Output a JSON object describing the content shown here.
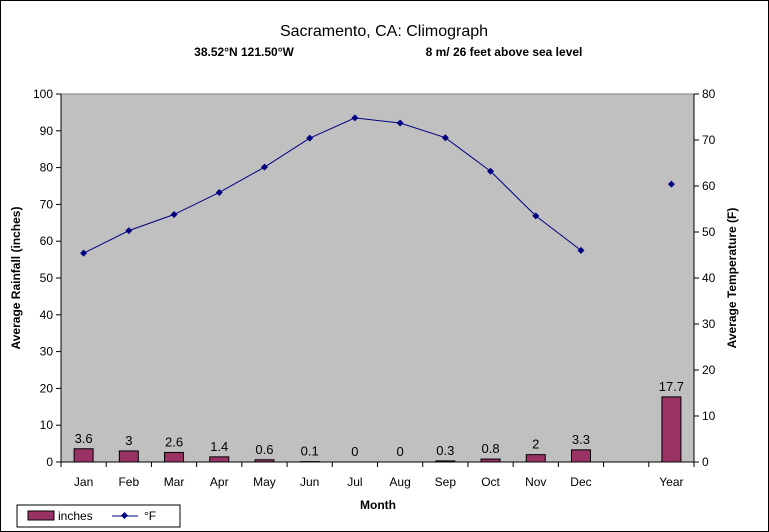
{
  "chart_data": {
    "type": "bar+line",
    "title": "Sacramento, CA: Climograph",
    "subtitle_left": "38.52°N 121.50°W",
    "subtitle_right": "8 m/ 26 feet above sea level",
    "xlabel": "Month",
    "ylabel_left": "Average Rainfall (inches)",
    "ylabel_right": "Average Temperature (F)",
    "categories": [
      "Jan",
      "Feb",
      "Mar",
      "Apr",
      "May",
      "Jun",
      "Jul",
      "Aug",
      "Sep",
      "Oct",
      "Nov",
      "Dec",
      "",
      "Year"
    ],
    "ylim_left": [
      0,
      100
    ],
    "yticks_left": [
      0,
      10,
      20,
      30,
      40,
      50,
      60,
      70,
      80,
      90,
      100
    ],
    "ylim_right": [
      0,
      80
    ],
    "yticks_right": [
      0,
      10,
      20,
      30,
      40,
      50,
      60,
      70,
      80
    ],
    "grid": false,
    "legend_position": "bottom-left",
    "series": [
      {
        "name": "inches",
        "kind": "bar",
        "axis": "left",
        "color": "#993366",
        "values": [
          3.6,
          3,
          2.6,
          1.4,
          0.6,
          0.1,
          0,
          0,
          0.3,
          0.8,
          2,
          3.3,
          null,
          17.7
        ],
        "labels": [
          "3.6",
          "3",
          "2.6",
          "1.4",
          "0.6",
          "0.1",
          "0",
          "0",
          "0.3",
          "0.8",
          "2",
          "3.3",
          "",
          "17.7"
        ]
      },
      {
        "name": "°F",
        "kind": "line",
        "axis": "right",
        "color": "#000080",
        "values": [
          45.4,
          50.3,
          53.8,
          58.6,
          64.1,
          70.4,
          74.8,
          73.7,
          70.5,
          63.2,
          53.5,
          46.0,
          null,
          60.4
        ]
      }
    ],
    "plot_background": "#c0c0c0"
  }
}
